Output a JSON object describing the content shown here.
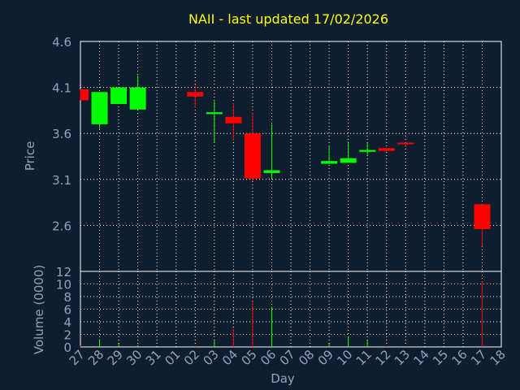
{
  "chart_data": [
    {
      "type": "candlestick",
      "title": "NAII - last updated 17/02/2026",
      "ylabel": "Price",
      "ylim": [
        2.1,
        4.6
      ],
      "yticks": [
        "4.6",
        "4.1",
        "3.6",
        "3.1",
        "2.6"
      ],
      "grid": true,
      "colors": {
        "up": "#00ff00",
        "down": "#ff0000",
        "background": "#0f1e2e",
        "grid": "#ffffff",
        "axis_text": "#8fa3bf",
        "title": "#ffff00"
      },
      "candles": [
        {
          "day": "27",
          "open": 4.08,
          "close": 3.96,
          "high": 4.08,
          "low": 3.96
        },
        {
          "day": "28",
          "open": 3.7,
          "close": 4.05,
          "high": 4.05,
          "low": 3.65
        },
        {
          "day": "29",
          "open": 3.92,
          "close": 4.1,
          "high": 4.1,
          "low": 3.92
        },
        {
          "day": "30",
          "open": 3.86,
          "close": 4.1,
          "high": 4.23,
          "low": 3.86
        },
        {
          "day": "02",
          "open": 4.05,
          "close": 4.0,
          "high": 4.13,
          "low": 3.88
        },
        {
          "day": "03",
          "open": 3.81,
          "close": 3.83,
          "high": 3.95,
          "low": 3.5
        },
        {
          "day": "04",
          "open": 3.78,
          "close": 3.71,
          "high": 3.93,
          "low": 3.52
        },
        {
          "day": "05",
          "open": 3.6,
          "close": 3.11,
          "high": 3.82,
          "low": 3.08
        },
        {
          "day": "06",
          "open": 3.17,
          "close": 3.2,
          "high": 3.7,
          "low": 3.1
        },
        {
          "day": "09",
          "open": 3.27,
          "close": 3.3,
          "high": 3.47,
          "low": 3.27
        },
        {
          "day": "10",
          "open": 3.28,
          "close": 3.33,
          "high": 3.51,
          "low": 3.28
        },
        {
          "day": "11",
          "open": 3.4,
          "close": 3.42,
          "high": 3.5,
          "low": 3.36
        },
        {
          "day": "12",
          "open": 3.44,
          "close": 3.41,
          "high": 3.44,
          "low": 3.41
        },
        {
          "day": "13",
          "open": 3.5,
          "close": 3.49,
          "high": 3.5,
          "low": 3.45
        },
        {
          "day": "17",
          "open": 2.83,
          "close": 2.56,
          "high": 2.83,
          "low": 2.37
        }
      ]
    },
    {
      "type": "bar",
      "ylabel": "Volume (0000)",
      "xlabel": "Day",
      "ylim": [
        0,
        12
      ],
      "yticks": [
        "0",
        "2",
        "4",
        "6",
        "8",
        "10",
        "12"
      ],
      "categories": [
        "27",
        "28",
        "29",
        "30",
        "31",
        "01",
        "02",
        "03",
        "04",
        "05",
        "06",
        "07",
        "08",
        "09",
        "10",
        "11",
        "12",
        "13",
        "14",
        "15",
        "16",
        "17",
        "18"
      ],
      "values": [
        0.2,
        1.2,
        0.5,
        0.3,
        0,
        0,
        0.3,
        1.0,
        2.9,
        7.3,
        6.4,
        0,
        0,
        0.5,
        1.7,
        1.1,
        0.2,
        0.1,
        0,
        0,
        0,
        10.4,
        0
      ],
      "bar_colors": [
        "down",
        "up",
        "up",
        "up",
        "none",
        "none",
        "down",
        "up",
        "down",
        "down",
        "up",
        "none",
        "none",
        "up",
        "up",
        "up",
        "down",
        "down",
        "none",
        "none",
        "none",
        "down",
        "none"
      ]
    }
  ]
}
